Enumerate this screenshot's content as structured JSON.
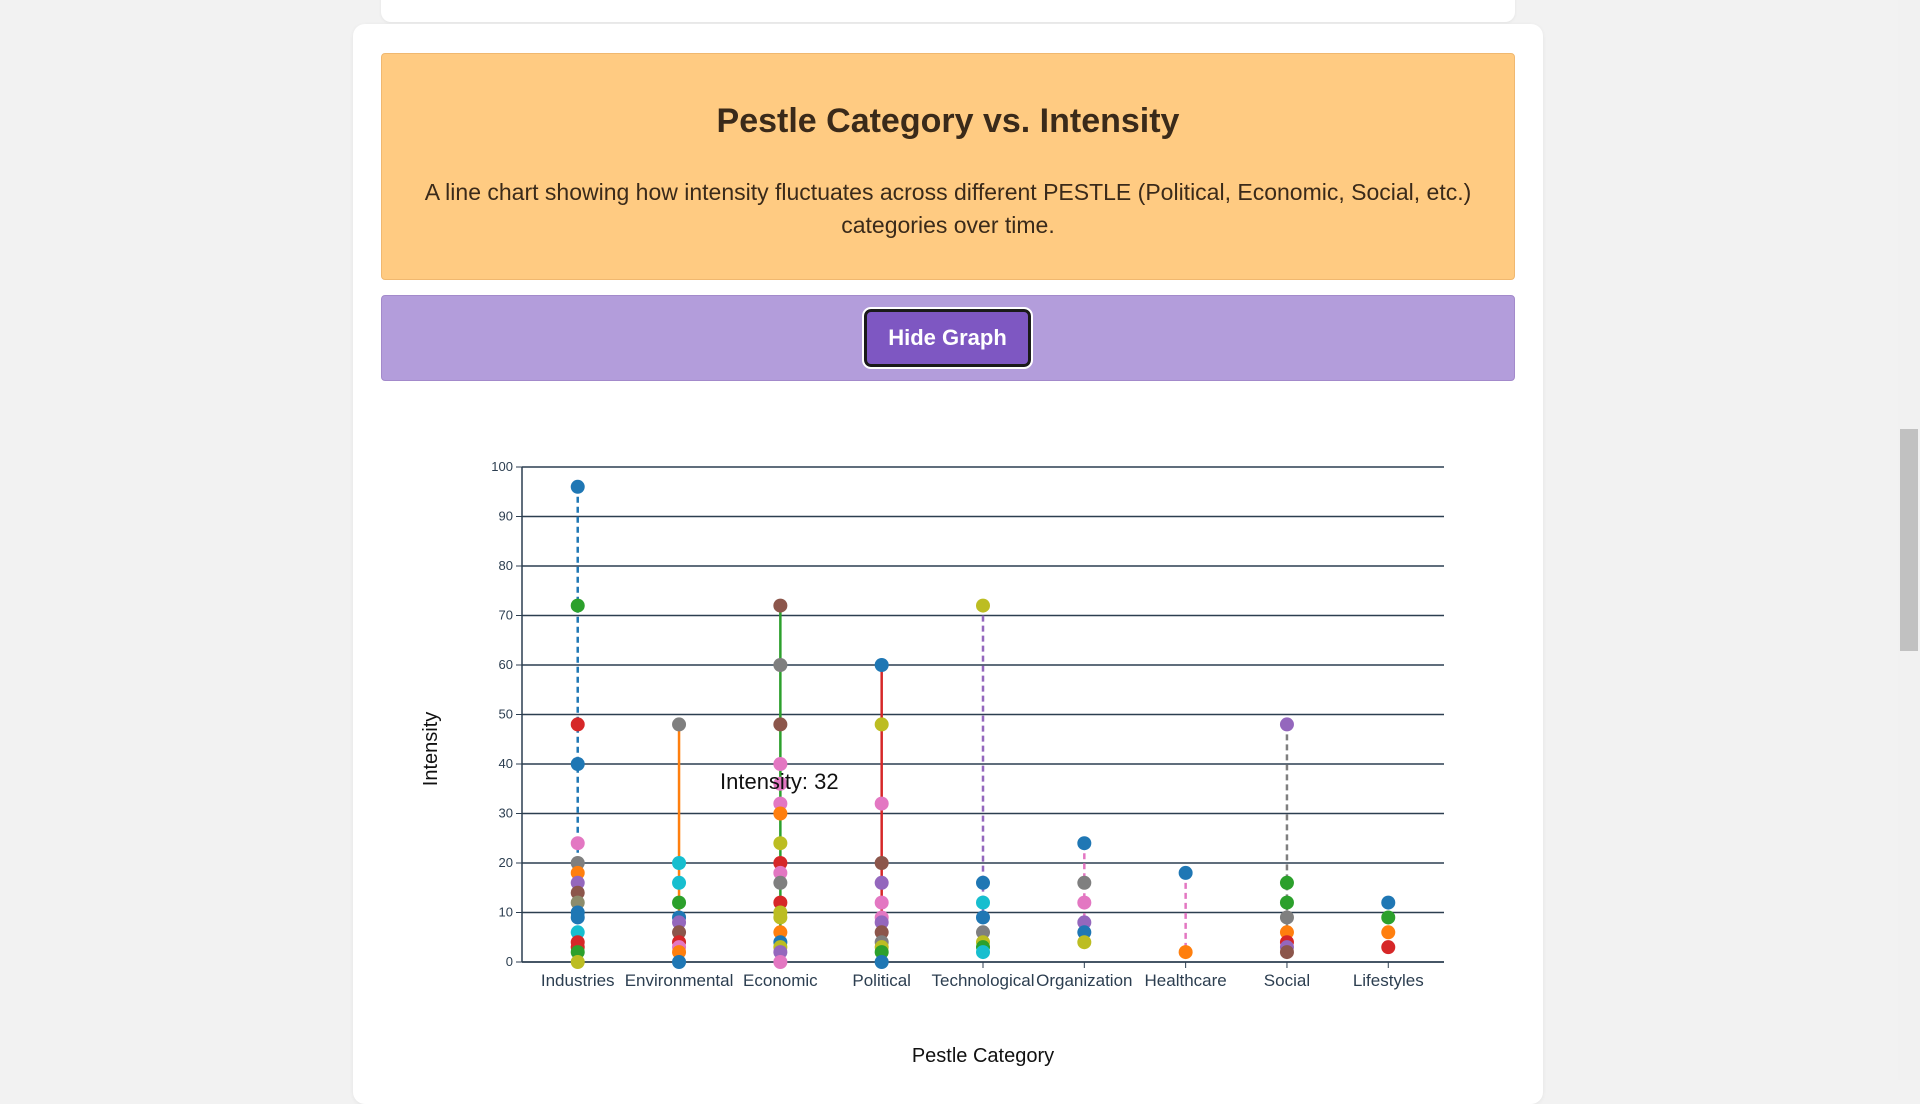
{
  "header": {
    "title": "Pestle Category vs. Intensity",
    "description": "A line chart showing how intensity fluctuates across different PESTLE (Political, Economic, Social, etc.) categories over time."
  },
  "button": {
    "label": "Hide Graph"
  },
  "chart_data": {
    "type": "strip",
    "x_label": "Pestle Category",
    "y_label": "Intensity",
    "tooltip": "Intensity: 32",
    "categories": [
      "Industries",
      "Environmental",
      "Economic",
      "Political",
      "Technological",
      "Organization",
      "Healthcare",
      "Social",
      "Lifestyles"
    ],
    "values": [
      [
        96,
        72,
        48,
        40,
        24,
        20,
        18,
        16,
        14,
        12,
        10,
        9,
        6,
        4,
        3,
        2,
        0
      ],
      [
        48,
        20,
        16,
        12,
        9,
        8,
        6,
        4,
        3,
        2,
        0
      ],
      [
        72,
        60,
        48,
        40,
        36,
        32,
        30,
        24,
        20,
        18,
        16,
        12,
        10,
        9,
        6,
        4,
        3,
        2,
        0
      ],
      [
        60,
        48,
        32,
        20,
        16,
        12,
        9,
        8,
        6,
        4,
        3,
        2,
        0
      ],
      [
        72,
        16,
        12,
        9,
        6,
        4,
        3,
        2
      ],
      [
        24,
        16,
        12,
        8,
        6,
        4
      ],
      [
        18,
        2
      ],
      [
        48,
        16,
        12,
        9,
        6,
        4,
        3,
        2
      ],
      [
        12,
        9,
        6,
        3
      ]
    ],
    "point_colors": [
      [
        "#1f77b4",
        "#2ca02c",
        "#d62728",
        "#1f77b4",
        "#e377c2",
        "#7f7f7f",
        "#ff7f0e",
        "#9467bd",
        "#8c564b",
        "#8c8c6c",
        "#1f77b4",
        "#1f77b4",
        "#17becf",
        "#d62728",
        "#d62728",
        "#2ca02c",
        "#bcbd22"
      ],
      [
        "#7f7f7f",
        "#17becf",
        "#17becf",
        "#2ca02c",
        "#1f77b4",
        "#9467bd",
        "#8c564b",
        "#d62728",
        "#e377c2",
        "#ff7f0e",
        "#1f77b4"
      ],
      [
        "#8c564b",
        "#7f7f7f",
        "#8c564b",
        "#e377c2",
        "#e377c2",
        "#e377c2",
        "#ff7f0e",
        "#bcbd22",
        "#d62728",
        "#e377c2",
        "#7f7f7f",
        "#d62728",
        "#bcbd22",
        "#bcbd22",
        "#ff7f0e",
        "#1f77b4",
        "#bcbd22",
        "#9467bd",
        "#e377c2"
      ],
      [
        "#1f77b4",
        "#bcbd22",
        "#e377c2",
        "#8c564b",
        "#9467bd",
        "#e377c2",
        "#e377c2",
        "#9467bd",
        "#8c564b",
        "#7f7f7f",
        "#bcbd22",
        "#2ca02c",
        "#1f77b4"
      ],
      [
        "#bcbd22",
        "#1f77b4",
        "#17becf",
        "#1f77b4",
        "#7f7f7f",
        "#bcbd22",
        "#2ca02c",
        "#17becf"
      ],
      [
        "#1f77b4",
        "#7f7f7f",
        "#e377c2",
        "#9467bd",
        "#1f77b4",
        "#bcbd22"
      ],
      [
        "#1f77b4",
        "#ff7f0e"
      ],
      [
        "#9467bd",
        "#2ca02c",
        "#2ca02c",
        "#7f7f7f",
        "#ff7f0e",
        "#d62728",
        "#9467bd",
        "#8c564b"
      ],
      [
        "#1f77b4",
        "#2ca02c",
        "#ff7f0e",
        "#d62728"
      ]
    ],
    "line_colors": [
      "#1f77b4",
      "#ff7f0e",
      "#2ca02c",
      "#d62728",
      "#9467bd",
      "#e377c2",
      "#e377c2",
      "#7f7f7f",
      null
    ],
    "line_dashed": [
      true,
      false,
      false,
      false,
      true,
      true,
      true,
      true,
      false
    ],
    "ylim": [
      0,
      100
    ],
    "yticks": [
      0,
      10,
      20,
      30,
      40,
      50,
      60,
      70,
      80,
      90,
      100
    ],
    "grid": true
  }
}
